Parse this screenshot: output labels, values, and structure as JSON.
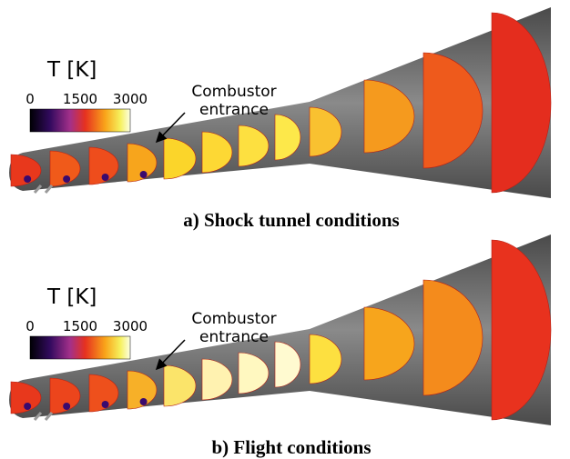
{
  "panels": [
    {
      "colorbar": {
        "title": "T [K]",
        "ticks": [
          "0",
          "1500",
          "3000"
        ]
      },
      "annotation": [
        "Combustor",
        "entrance"
      ],
      "caption": "a) Shock tunnel conditions"
    },
    {
      "colorbar": {
        "title": "T [K]",
        "ticks": [
          "0",
          "1500",
          "3000"
        ]
      },
      "annotation": [
        "Combustor",
        "entrance"
      ],
      "caption": "b) Flight conditions"
    }
  ]
}
